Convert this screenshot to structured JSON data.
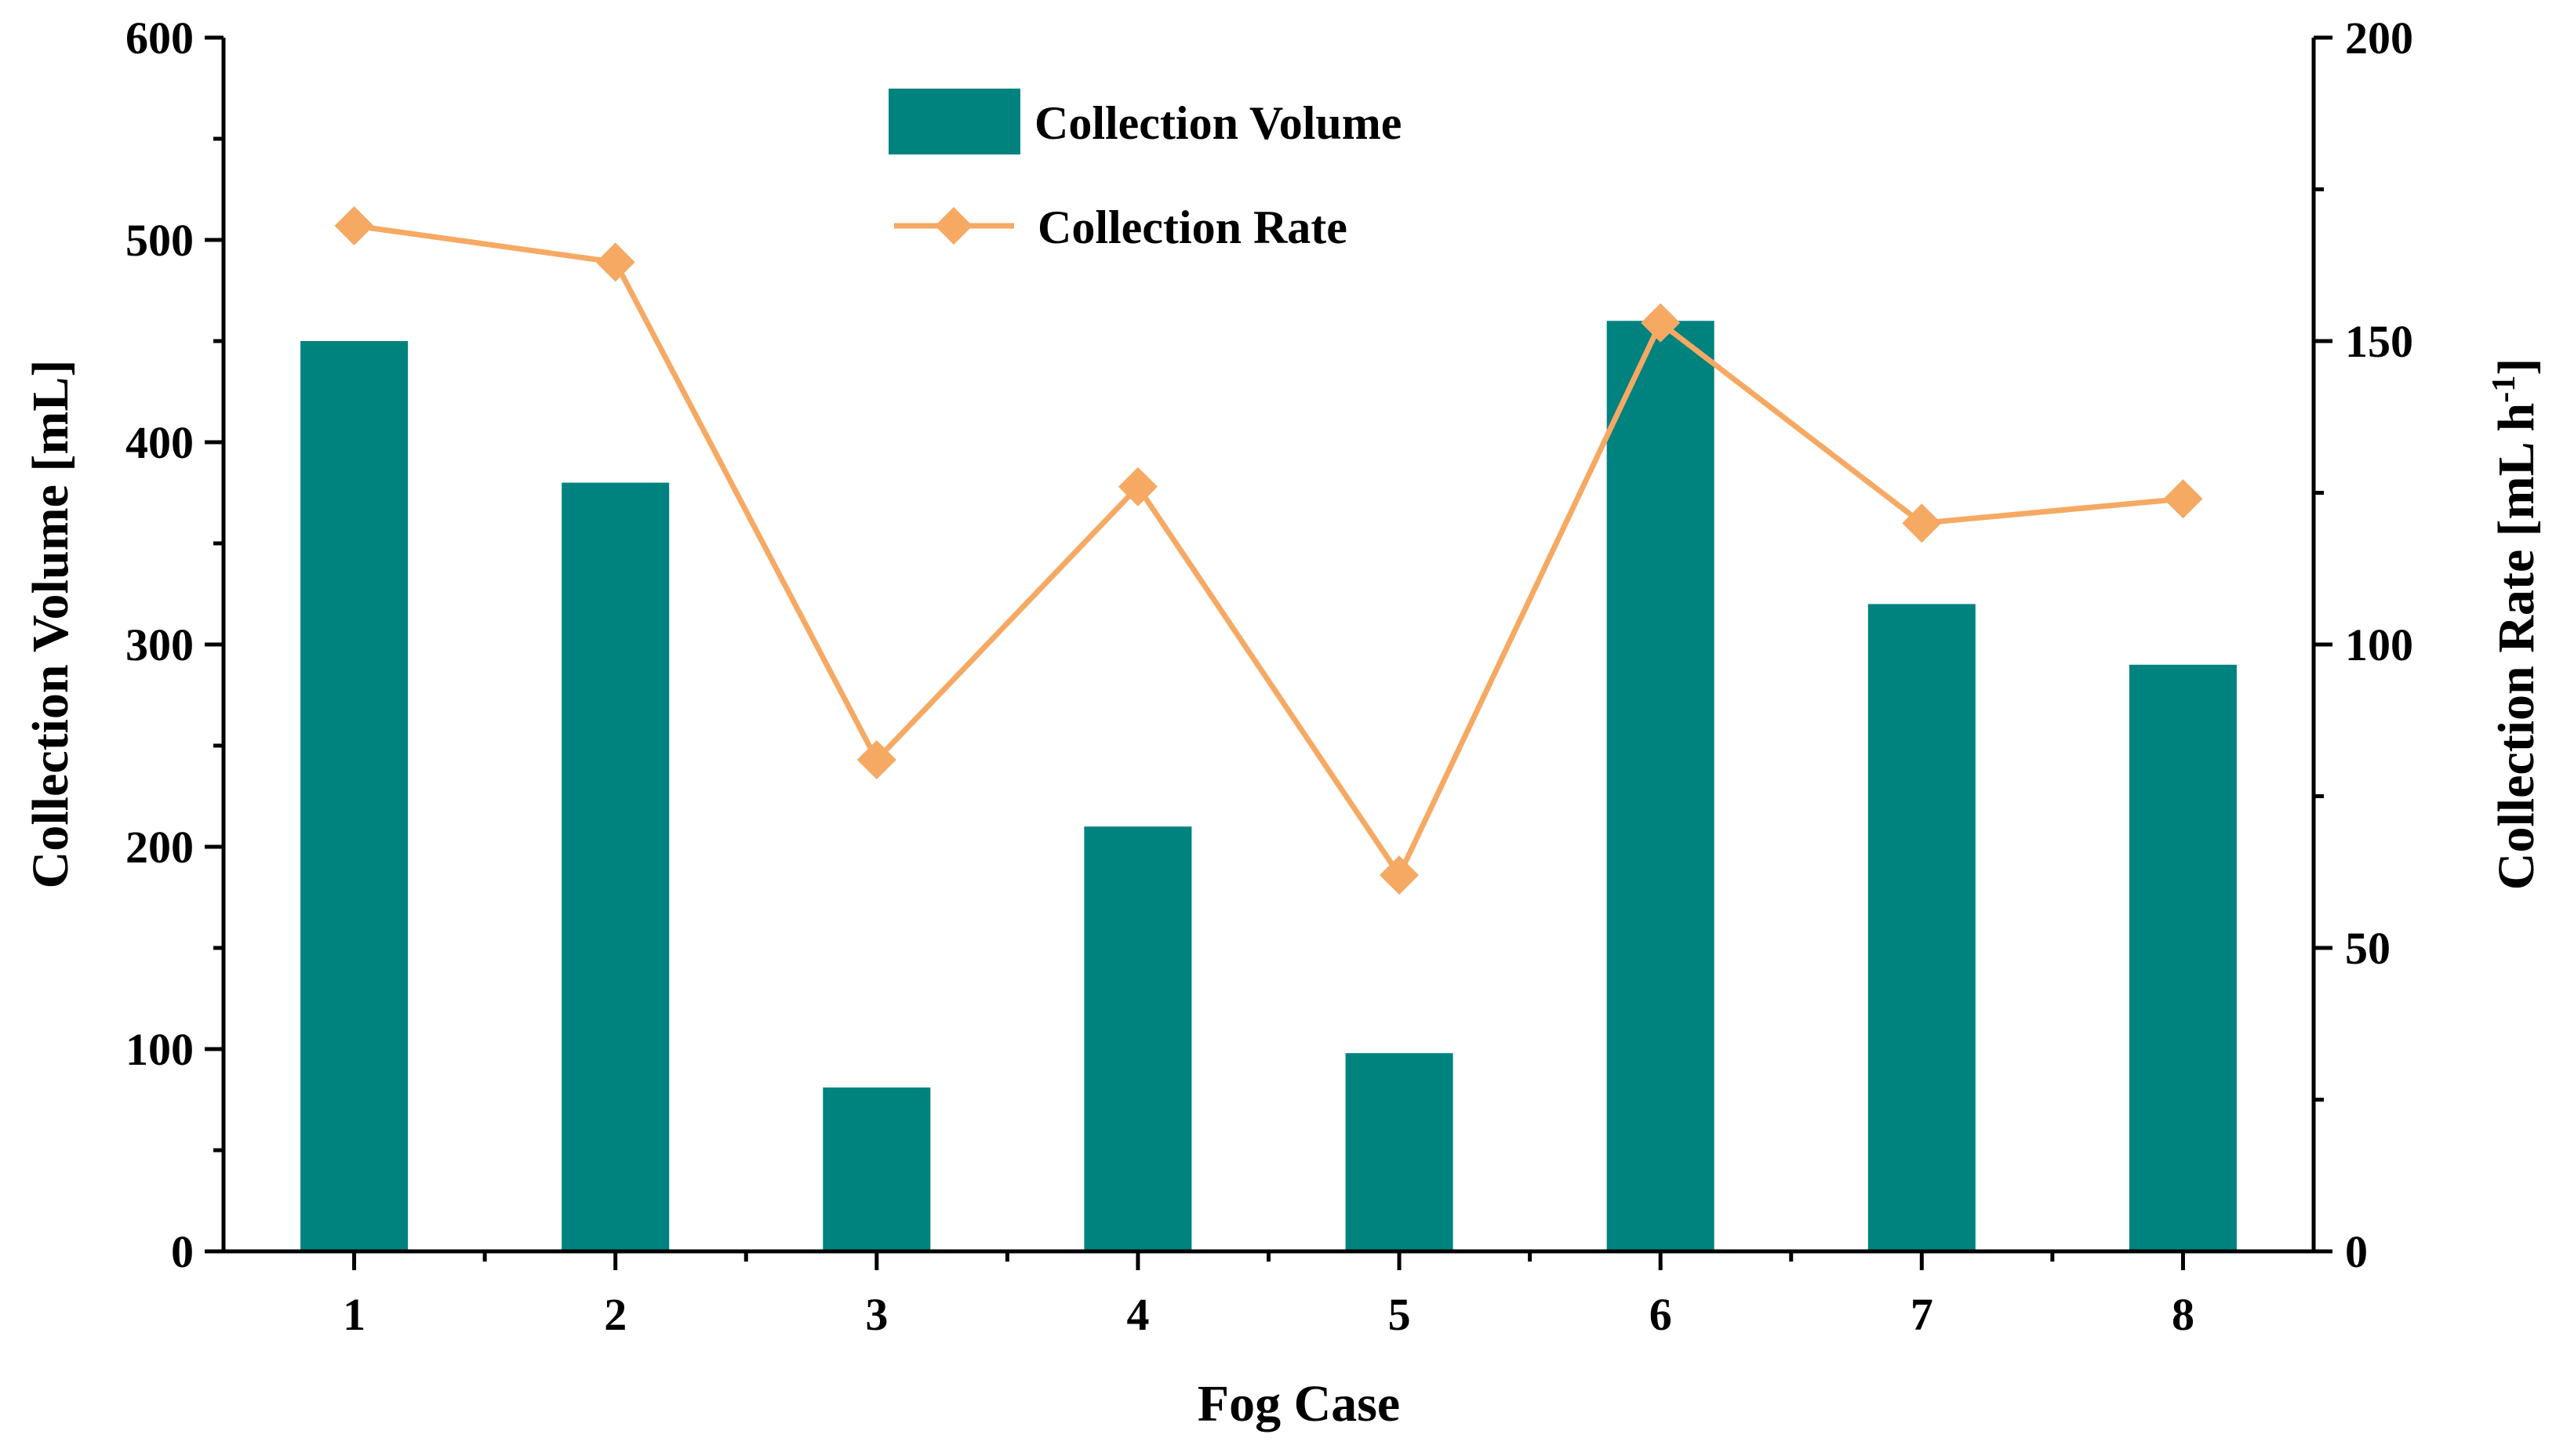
{
  "chart_data": {
    "type": "bar+line",
    "title": "",
    "categories": [
      "1",
      "2",
      "3",
      "4",
      "5",
      "6",
      "7",
      "8"
    ],
    "xlabel": "Fog Case",
    "ylabel": "Collection Volume [mL]",
    "y2label": {
      "main": "Collection Rate [mL h",
      "superscript": "-1",
      "close": "]"
    },
    "ylim": [
      0,
      600
    ],
    "y2lim": [
      0,
      200
    ],
    "yticks": [
      "0",
      "100",
      "200",
      "300",
      "400",
      "500",
      "600"
    ],
    "y2ticks": [
      "0",
      "50",
      "100",
      "150",
      "200"
    ],
    "series": [
      {
        "name": "Collection Volume",
        "type": "bar",
        "axis": "left",
        "color": "#00827f",
        "values": [
          450,
          380,
          81,
          210,
          98,
          460,
          320,
          290
        ]
      },
      {
        "name": "Collection Rate",
        "type": "line",
        "axis": "right",
        "marker": "diamond",
        "color": "#f5a963",
        "values": [
          169,
          163,
          81,
          126,
          62,
          153,
          120,
          124
        ]
      }
    ],
    "legend": "top-center",
    "grid": false
  }
}
